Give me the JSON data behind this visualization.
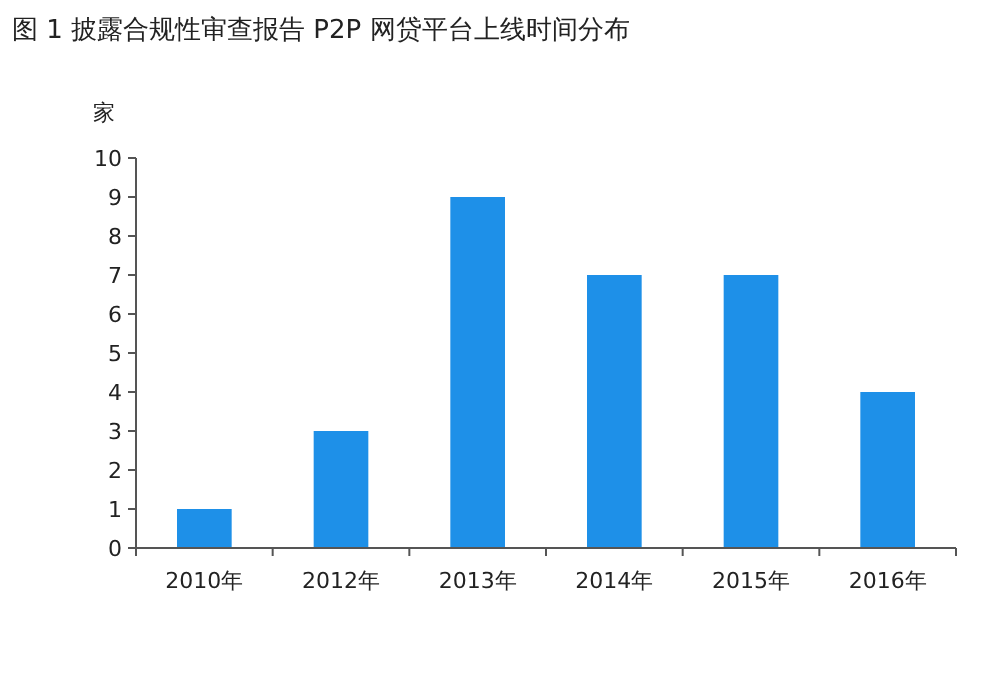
{
  "chart_data": {
    "type": "bar",
    "title": "图 1  披露合规性审查报告 P2P 网贷平台上线时间分布",
    "ylabel": "家",
    "categories": [
      "2010年",
      "2012年",
      "2013年",
      "2014年",
      "2015年",
      "2016年"
    ],
    "values": [
      1,
      3,
      9,
      7,
      7,
      4
    ],
    "color": "#1e90e8",
    "ylim": [
      0,
      10
    ],
    "yticks": [
      0,
      1,
      2,
      3,
      4,
      5,
      6,
      7,
      8,
      9,
      10
    ],
    "grid": false
  }
}
